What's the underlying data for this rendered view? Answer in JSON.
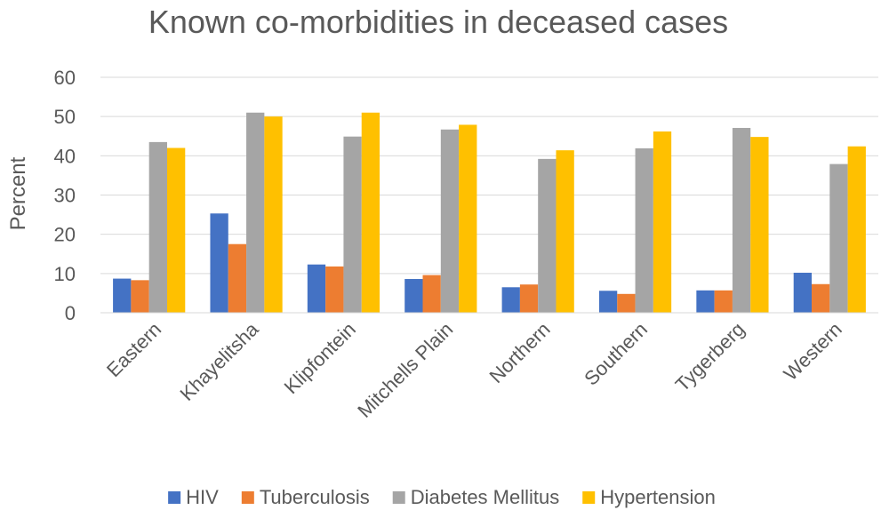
{
  "chart_data": {
    "type": "bar",
    "title": "Known co-morbidities in deceased cases",
    "xlabel": "",
    "ylabel": "Percent",
    "ylim": [
      0,
      60
    ],
    "yticks": [
      0,
      10,
      20,
      30,
      40,
      50,
      60
    ],
    "grid": true,
    "legend_position": "bottom",
    "categories": [
      "Eastern",
      "Khayelitsha",
      "Klipfontein",
      "Mitchells Plain",
      "Northern",
      "Southern",
      "Tygerberg",
      "Western"
    ],
    "series": [
      {
        "name": "HIV",
        "color": "#4472C4",
        "values": [
          8.7,
          25.3,
          12.3,
          8.6,
          6.5,
          5.6,
          5.7,
          10.2
        ]
      },
      {
        "name": "Tuberculosis",
        "color": "#ED7D31",
        "values": [
          8.3,
          17.5,
          11.8,
          9.6,
          7.2,
          4.8,
          5.7,
          7.3
        ]
      },
      {
        "name": "Diabetes Mellitus",
        "color": "#A5A5A5",
        "values": [
          43.5,
          51.0,
          44.9,
          46.7,
          39.2,
          41.9,
          47.1,
          37.9
        ]
      },
      {
        "name": "Hypertension",
        "color": "#FFC000",
        "values": [
          42.0,
          50.0,
          51.0,
          47.9,
          41.4,
          46.2,
          44.8,
          42.4
        ]
      }
    ]
  }
}
